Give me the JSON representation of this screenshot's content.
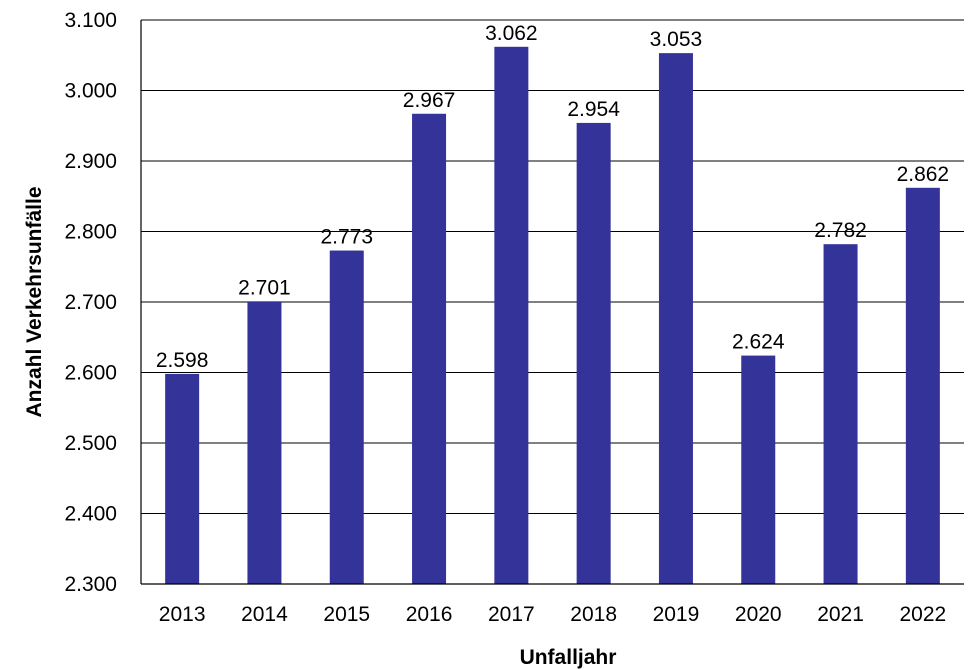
{
  "chart_data": {
    "type": "bar",
    "title": "",
    "xlabel": "Unfalljahr",
    "ylabel": "Anzahl Verkehrsunfälle",
    "categories": [
      "2013",
      "2014",
      "2015",
      "2016",
      "2017",
      "2018",
      "2019",
      "2020",
      "2021",
      "2022"
    ],
    "values": [
      2598,
      2701,
      2773,
      2967,
      3062,
      2954,
      3053,
      2624,
      2782,
      2862
    ],
    "value_labels": [
      "2.598",
      "2.701",
      "2.773",
      "2.967",
      "3.062",
      "2.954",
      "3.053",
      "2.624",
      "2.782",
      "2.862"
    ],
    "ylim": [
      2300,
      3100
    ],
    "yticks": [
      2300,
      2400,
      2500,
      2600,
      2700,
      2800,
      2900,
      3000,
      3100
    ],
    "ytick_labels": [
      "2.300",
      "2.400",
      "2.500",
      "2.600",
      "2.700",
      "2.800",
      "2.900",
      "3.000",
      "3.100"
    ],
    "grid": true,
    "legend": false,
    "bar_color": "#333399"
  }
}
